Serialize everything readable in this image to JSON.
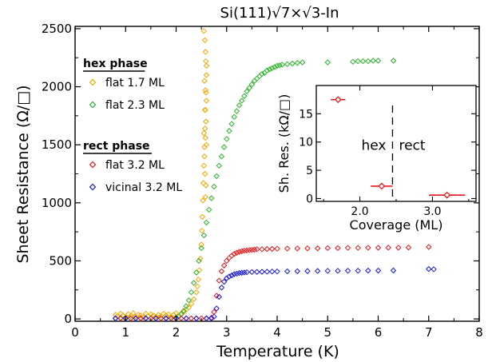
{
  "chart_data": {
    "type": "scatter",
    "title": "Si(111)√7×√3-In",
    "xlabel": "Temperature (K)",
    "ylabel": "Sheet Resistance (Ω/□)",
    "xlim": [
      0,
      8
    ],
    "ylim": [
      -20,
      2520
    ],
    "xticks": [
      "0",
      "1",
      "2",
      "3",
      "4",
      "5",
      "6",
      "7",
      "8"
    ],
    "yticks": [
      "0",
      "500",
      "1000",
      "1500",
      "2000",
      "2500"
    ],
    "grid": false,
    "legend_position": "top-left",
    "legend_groups": [
      {
        "heading": "hex phase",
        "entries": [
          "flat 1.7 ML",
          "flat 2.3 ML"
        ]
      },
      {
        "heading": "rect phase",
        "entries": [
          "flat 3.2 ML",
          "vicinal 3.2 ML"
        ]
      }
    ],
    "series": [
      {
        "name": "flat 1.7 ML",
        "color": "#f5a800",
        "marker": "diamond-open",
        "x": [
          0.8,
          0.85,
          0.9,
          0.95,
          1.0,
          1.05,
          1.1,
          1.15,
          1.2,
          1.25,
          1.3,
          1.35,
          1.4,
          1.45,
          1.5,
          1.55,
          1.6,
          1.65,
          1.7,
          1.75,
          1.8,
          1.85,
          1.9,
          1.95,
          2.0,
          2.05,
          2.1,
          2.15,
          2.2,
          2.25,
          2.3,
          2.35,
          2.4,
          2.42,
          2.44,
          2.46,
          2.48,
          2.5,
          2.51,
          2.52,
          2.53,
          2.54,
          2.55,
          2.56,
          2.57,
          2.58,
          2.59,
          2.6,
          2.55,
          2.57,
          2.58,
          2.59,
          2.6,
          2.56,
          2.58,
          2.6,
          2.57,
          2.59,
          2.55,
          2.58,
          2.6,
          2.56,
          2.57,
          2.59,
          2.58
        ],
        "y": [
          35,
          20,
          45,
          30,
          15,
          40,
          25,
          50,
          20,
          35,
          30,
          15,
          45,
          25,
          40,
          30,
          20,
          35,
          25,
          45,
          30,
          40,
          20,
          35,
          50,
          25,
          45,
          60,
          80,
          100,
          130,
          170,
          230,
          280,
          340,
          420,
          520,
          640,
          760,
          880,
          1020,
          1170,
          1320,
          1480,
          1640,
          1800,
          1950,
          2100,
          2480,
          2400,
          2300,
          2220,
          2180,
          2050,
          1970,
          1880,
          1800,
          1700,
          1600,
          1560,
          1500,
          1400,
          1250,
          1150,
          1050
        ]
      },
      {
        "name": "flat 2.3 ML",
        "color": "#2bb52b",
        "marker": "diamond-open",
        "x": [
          0.8,
          0.9,
          1.0,
          1.1,
          1.2,
          1.3,
          1.4,
          1.5,
          1.6,
          1.7,
          1.8,
          1.9,
          2.0,
          2.05,
          2.1,
          2.15,
          2.2,
          2.25,
          2.3,
          2.35,
          2.4,
          2.45,
          2.5,
          2.55,
          2.6,
          2.65,
          2.7,
          2.75,
          2.8,
          2.85,
          2.9,
          2.95,
          3.0,
          3.05,
          3.1,
          3.15,
          3.2,
          3.25,
          3.3,
          3.35,
          3.4,
          3.45,
          3.5,
          3.55,
          3.6,
          3.65,
          3.7,
          3.75,
          3.8,
          3.85,
          3.9,
          3.95,
          4.0,
          4.05,
          4.1,
          4.2,
          4.3,
          4.4,
          4.5,
          5.0,
          5.5,
          5.6,
          5.7,
          5.8,
          5.9,
          6.0,
          6.3
        ],
        "y": [
          5,
          8,
          3,
          6,
          5,
          4,
          7,
          5,
          6,
          5,
          8,
          6,
          10,
          20,
          40,
          70,
          110,
          160,
          230,
          310,
          400,
          500,
          610,
          720,
          830,
          940,
          1040,
          1140,
          1230,
          1320,
          1400,
          1480,
          1550,
          1620,
          1680,
          1740,
          1790,
          1840,
          1880,
          1920,
          1960,
          1990,
          2020,
          2050,
          2070,
          2090,
          2110,
          2120,
          2140,
          2150,
          2160,
          2170,
          2180,
          2185,
          2190,
          2195,
          2200,
          2205,
          2210,
          2210,
          2215,
          2220,
          2220,
          2220,
          2225,
          2225,
          2225
        ]
      },
      {
        "name": "flat 3.2 ML",
        "color": "#e8191d",
        "marker": "diamond-open",
        "x": [
          0.8,
          0.9,
          1.0,
          1.1,
          1.2,
          1.3,
          1.4,
          1.5,
          1.6,
          1.7,
          1.8,
          1.9,
          2.0,
          2.1,
          2.2,
          2.3,
          2.4,
          2.5,
          2.6,
          2.7,
          2.75,
          2.8,
          2.85,
          2.9,
          2.95,
          3.0,
          3.05,
          3.1,
          3.15,
          3.2,
          3.25,
          3.3,
          3.35,
          3.4,
          3.45,
          3.5,
          3.55,
          3.6,
          3.7,
          3.8,
          3.9,
          4.0,
          4.2,
          4.4,
          4.6,
          4.8,
          5.0,
          5.2,
          5.4,
          5.6,
          5.8,
          6.0,
          6.2,
          6.4,
          6.6,
          7.0
        ],
        "y": [
          5,
          5,
          5,
          5,
          5,
          5,
          5,
          5,
          5,
          5,
          5,
          5,
          5,
          5,
          5,
          5,
          5,
          5,
          5,
          10,
          60,
          200,
          330,
          410,
          460,
          500,
          525,
          545,
          560,
          570,
          578,
          583,
          588,
          590,
          593,
          595,
          597,
          600,
          600,
          602,
          603,
          605,
          606,
          607,
          608,
          608,
          610,
          610,
          612,
          612,
          613,
          613,
          614,
          614,
          615,
          620
        ]
      },
      {
        "name": "vicinal 3.2 ML",
        "color": "#1a1adc",
        "marker": "diamond-open",
        "x": [
          0.8,
          1.0,
          1.2,
          1.4,
          1.6,
          1.8,
          2.0,
          2.2,
          2.4,
          2.6,
          2.7,
          2.75,
          2.8,
          2.85,
          2.9,
          2.95,
          3.0,
          3.05,
          3.1,
          3.15,
          3.2,
          3.25,
          3.3,
          3.35,
          3.4,
          3.5,
          3.6,
          3.7,
          3.8,
          3.9,
          4.0,
          4.2,
          4.4,
          4.6,
          4.8,
          5.0,
          5.2,
          5.4,
          5.6,
          5.8,
          6.0,
          6.3,
          7.0,
          7.1
        ],
        "y": [
          5,
          5,
          5,
          5,
          5,
          5,
          5,
          5,
          5,
          5,
          5,
          20,
          90,
          190,
          270,
          320,
          350,
          365,
          375,
          385,
          390,
          395,
          398,
          400,
          402,
          404,
          405,
          406,
          407,
          408,
          409,
          410,
          411,
          412,
          413,
          414,
          414,
          415,
          415,
          416,
          416,
          417,
          430,
          428
        ]
      }
    ],
    "inset": {
      "type": "scatter",
      "xlabel": "Coverage (ML)",
      "ylabel": "Sh. Res. (kΩ/□)",
      "xlim": [
        1.4,
        3.6
      ],
      "ylim": [
        -0.5,
        20
      ],
      "xticks": [
        "2.0",
        "3.0"
      ],
      "yticks": [
        "0",
        "5",
        "10",
        "15"
      ],
      "divider_x": 2.45,
      "annotations": [
        "hex",
        "rect"
      ],
      "points": [
        {
          "x": 1.7,
          "y": 17.5,
          "xerr": 0.1
        },
        {
          "x": 2.3,
          "y": 2.2,
          "xerr": 0.15
        },
        {
          "x": 3.2,
          "y": 0.6,
          "xerr": 0.25
        }
      ],
      "color": "#e8191d"
    }
  }
}
